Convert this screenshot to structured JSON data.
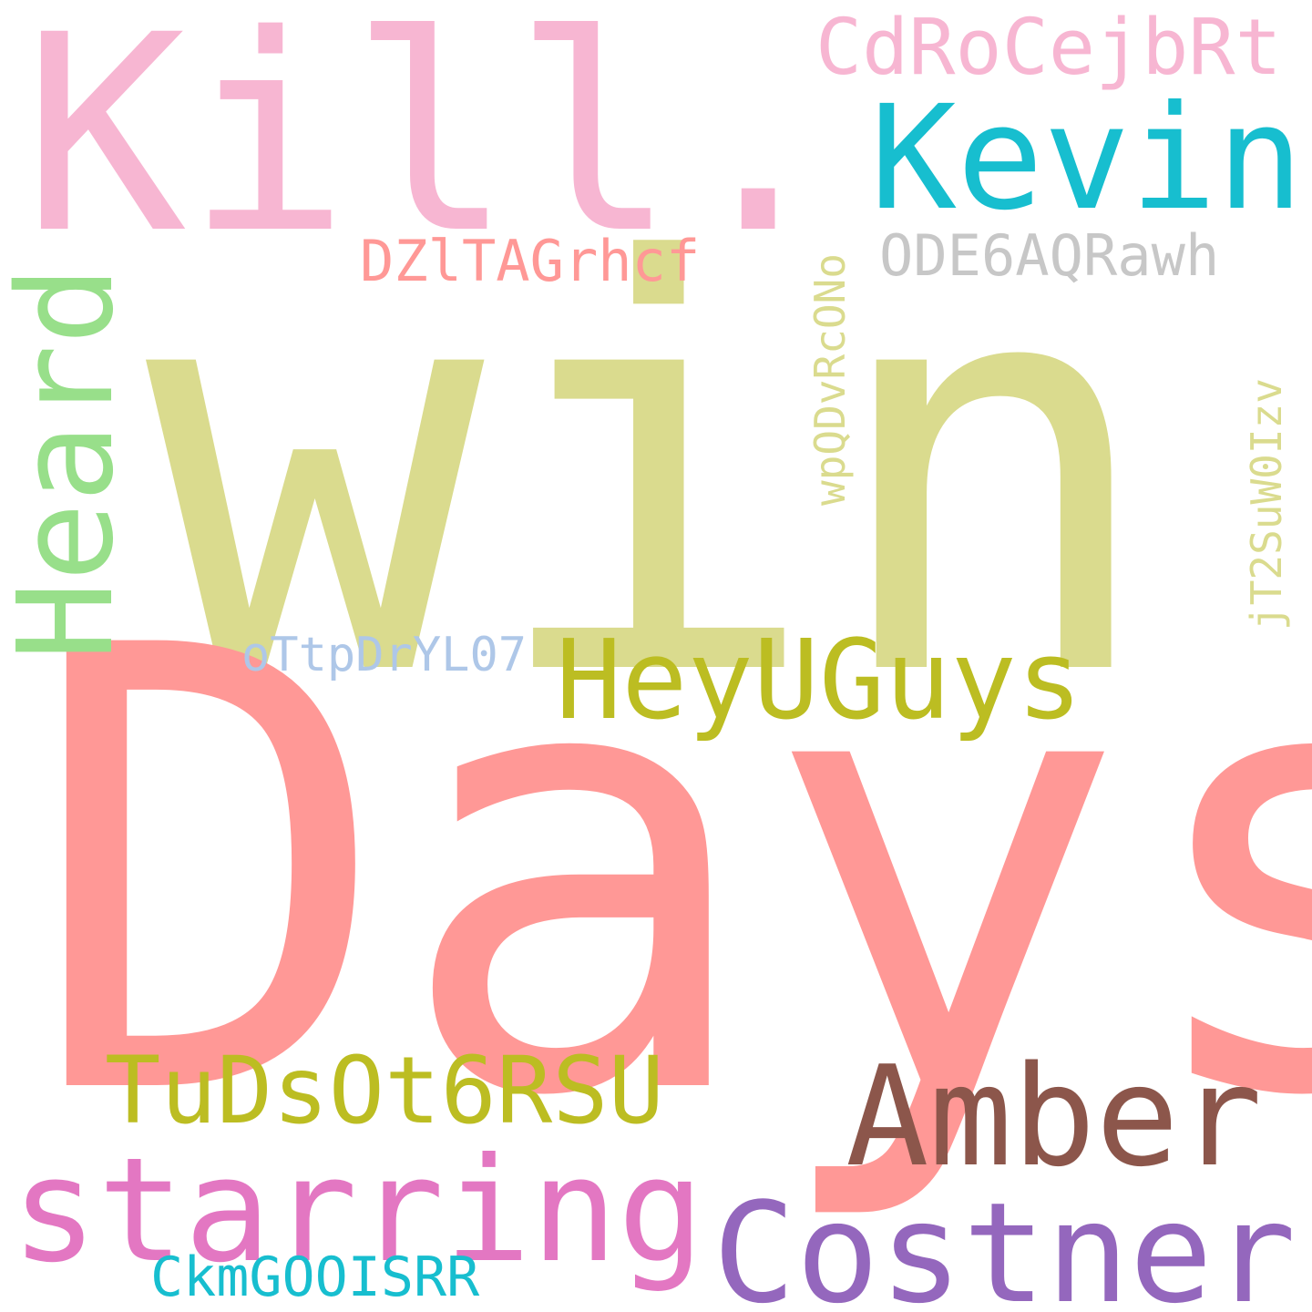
{
  "words": [
    {
      "id": "win",
      "text": "win",
      "color": "#dadb8e"
    },
    {
      "id": "days",
      "text": "Days",
      "color": "#ff9896"
    },
    {
      "id": "kill",
      "text": "Kill.",
      "color": "#f7b6d2"
    },
    {
      "id": "kevin",
      "text": "Kevin",
      "color": "#17becf"
    },
    {
      "id": "cdro",
      "text": "CdRoCejbRt",
      "color": "#f7b6d2"
    },
    {
      "id": "dzl",
      "text": "DZlTAGrhcf",
      "color": "#ff9896"
    },
    {
      "id": "ode",
      "text": "ODE6AQRawh",
      "color": "#c7c7c7"
    },
    {
      "id": "heard",
      "text": "Heard",
      "color": "#98df8a"
    },
    {
      "id": "wpq",
      "text": "wpQDvRcONo",
      "color": "#dadb8e"
    },
    {
      "id": "jt2",
      "text": "jT2SuW0Izv",
      "color": "#dadb8e"
    },
    {
      "id": "ottp",
      "text": "oTtpDrYL07",
      "color": "#aec7e8"
    },
    {
      "id": "heyu",
      "text": "HeyUGuys",
      "color": "#bcbd22"
    },
    {
      "id": "tuds",
      "text": "TuDsOt6RSU",
      "color": "#bcbd22"
    },
    {
      "id": "amber",
      "text": "Amber",
      "color": "#8c564b"
    },
    {
      "id": "starring",
      "text": "starring",
      "color": "#e377c2"
    },
    {
      "id": "costner",
      "text": "Costner",
      "color": "#9467bd"
    },
    {
      "id": "ckm",
      "text": "CkmGOOISRR",
      "color": "#17becf"
    }
  ]
}
